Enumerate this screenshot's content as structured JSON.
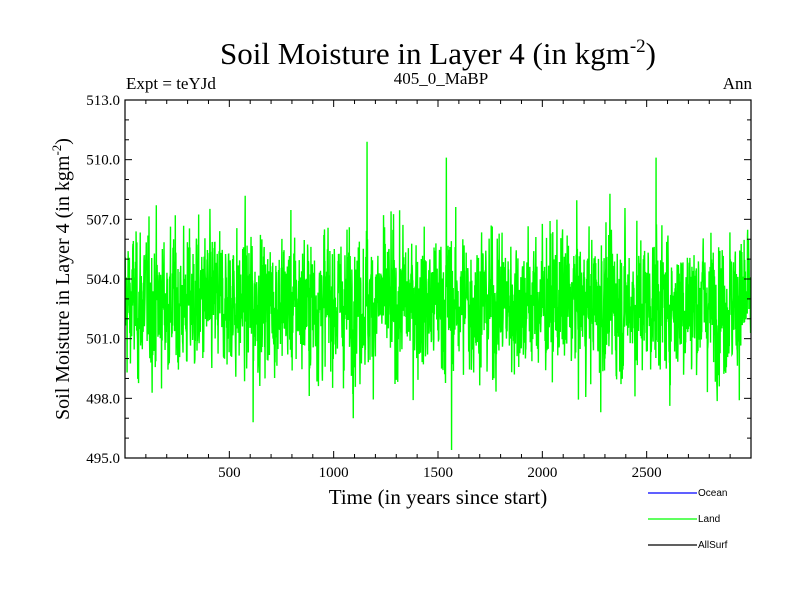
{
  "chart_data": {
    "type": "line",
    "title_main": "Soil Moisture in Layer 4 (in kgm",
    "title_sup": "-2",
    "title_close": ")",
    "subtitle_left": "Expt = teYJd",
    "subtitle_center": "405_0_MaBP",
    "subtitle_right": "Ann",
    "xlabel": "Time (in years since start)",
    "ylabel_main": "Soil Moisture in Layer 4 (in kgm",
    "ylabel_sup": "-2",
    "ylabel_close": ")",
    "xlim": [
      0,
      3000
    ],
    "ylim": [
      495,
      513
    ],
    "xticks": [
      500,
      1000,
      1500,
      2000,
      2500
    ],
    "xtick_labels": [
      "500",
      "1000",
      "1500",
      "2000",
      "2500"
    ],
    "yticks": [
      495,
      498,
      501,
      504,
      507,
      510,
      513
    ],
    "ytick_labels": [
      "495.0",
      "498.0",
      "501.0",
      "504.0",
      "507.0",
      "510.0",
      "513.0"
    ],
    "series": [
      {
        "name": "Ocean",
        "color": "#0000ff",
        "values": []
      },
      {
        "name": "Land",
        "color": "#00ff00",
        "points": 3000,
        "mean": 502.8,
        "std": 1.8,
        "annotated_extremes": [
          [
            614,
            496.8
          ],
          [
            1160,
            510.9
          ],
          [
            1540,
            510.1
          ],
          [
            1565,
            495.4
          ],
          [
            2545,
            510.1
          ],
          [
            2280,
            497.3
          ]
        ]
      },
      {
        "name": "AllSurf",
        "color": "#000000",
        "values": []
      }
    ],
    "grid": false,
    "legend_position": "bottom-right"
  }
}
